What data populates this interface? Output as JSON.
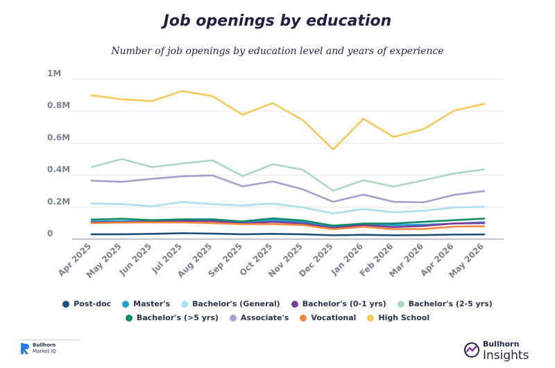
{
  "title": "Job openings by education",
  "subtitle": "Number of job openings by education level and years of experience",
  "chart_data": {
    "type": "line",
    "x": [
      "Apr 2025",
      "May 2025",
      "Jun 2025",
      "Jul 2025",
      "Aug 2025",
      "Sep 2025",
      "Oct 2025",
      "Nov 2025",
      "Dec 2025",
      "Jan 2026",
      "Feb 2026",
      "Mar 2026",
      "Apr 2026",
      "May 2026"
    ],
    "y_ticks": [
      "0",
      "0.2M",
      "0.4M",
      "0.6M",
      "0.8M",
      "1M"
    ],
    "y_tick_values": [
      0,
      200000,
      400000,
      600000,
      800000,
      1000000
    ],
    "ylim": [
      0,
      1000000
    ],
    "grid": true,
    "legend_position": "bottom",
    "series": [
      {
        "name": "Post-doc",
        "color": "#1b4f7a",
        "values": [
          30000,
          30000,
          33000,
          37000,
          34000,
          30000,
          33000,
          30000,
          24000,
          27000,
          24000,
          25000,
          28000,
          29000
        ]
      },
      {
        "name": "Master's",
        "color": "#1f9fd8",
        "values": [
          110000,
          112000,
          113000,
          117000,
          117000,
          104000,
          118000,
          108000,
          80000,
          95000,
          88000,
          90000,
          97000,
          105000
        ]
      },
      {
        "name": "Bachelor's (General)",
        "color": "#a8dff0",
        "values": [
          222000,
          218000,
          205000,
          232000,
          218000,
          210000,
          222000,
          198000,
          160000,
          188000,
          167000,
          177000,
          197000,
          202000
        ]
      },
      {
        "name": "Bachelor's (0-1 yrs)",
        "color": "#7a3d98",
        "values": [
          105000,
          106000,
          110000,
          113000,
          112000,
          98000,
          108000,
          98000,
          70000,
          88000,
          75000,
          82000,
          98000,
          100000
        ]
      },
      {
        "name": "Bachelor's (2-5 yrs)",
        "color": "#a8d8c0",
        "values": [
          450000,
          500000,
          450000,
          472000,
          492000,
          393000,
          468000,
          432000,
          302000,
          368000,
          328000,
          368000,
          410000,
          435000
        ]
      },
      {
        "name": "Bachelor's (>5 yrs)",
        "color": "#0e8a64",
        "values": [
          122000,
          127000,
          118000,
          124000,
          124000,
          110000,
          130000,
          116000,
          84000,
          97000,
          98000,
          108000,
          118000,
          128000
        ]
      },
      {
        "name": "Associate's",
        "color": "#a59fce",
        "values": [
          365000,
          358000,
          376000,
          392000,
          398000,
          330000,
          360000,
          310000,
          233000,
          278000,
          233000,
          230000,
          276000,
          300000
        ]
      },
      {
        "name": "Vocational",
        "color": "#f5883d",
        "values": [
          100000,
          103000,
          104000,
          104000,
          100000,
          93000,
          94000,
          88000,
          62000,
          77000,
          62000,
          63000,
          78000,
          80000
        ]
      },
      {
        "name": "High School",
        "color": "#f8c858",
        "values": [
          898000,
          873000,
          862000,
          925000,
          893000,
          777000,
          850000,
          742000,
          560000,
          752000,
          638000,
          688000,
          802000,
          845000
        ]
      }
    ]
  },
  "legend_rows": [
    [
      "Post-doc",
      "Master's",
      "Bachelor's (General)",
      "Bachelor's (0-1 yrs)",
      "Bachelor's (2-5 yrs)"
    ],
    [
      "Bachelor's (>5 yrs)",
      "Associate's",
      "Vocational",
      "High School"
    ]
  ],
  "logos": {
    "left_brand": "Bullhorn",
    "left_product": "Market IQ",
    "right_brand": "Bullhorn",
    "right_product": "Insights"
  }
}
